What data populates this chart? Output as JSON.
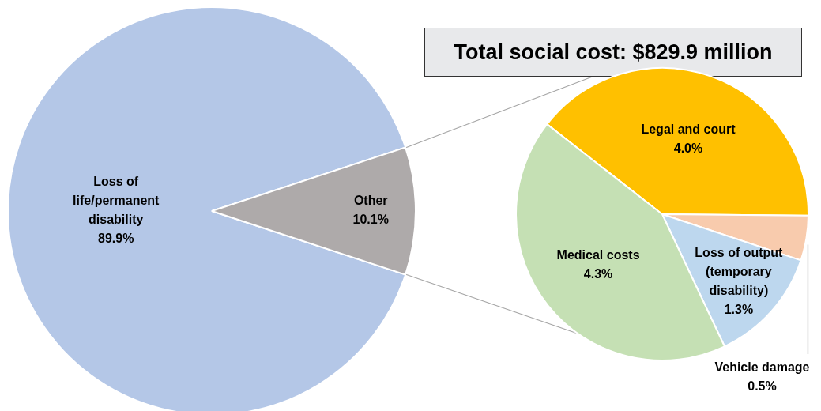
{
  "chart_data": [
    {
      "type": "pie",
      "categories": [
        "Loss of life/permanent disability",
        "Other"
      ],
      "values": [
        89.9,
        10.1
      ],
      "colors": [
        "#b4c7e7",
        "#aeaaaa"
      ],
      "value_labels": [
        "89.9%",
        "10.1%"
      ]
    },
    {
      "type": "pie",
      "title": "Total social cost: $829.9 million",
      "categories": [
        "Legal and court",
        "Vehicle damage",
        "Loss of output (temporary disability)",
        "Medical costs"
      ],
      "values": [
        4.0,
        0.5,
        1.3,
        4.3
      ],
      "colors": [
        "#ffc000",
        "#f8cbad",
        "#bdd7ee",
        "#c5e0b4"
      ],
      "value_labels": [
        "4.0%",
        "0.5%",
        "1.3%",
        "4.3%"
      ]
    }
  ]
}
